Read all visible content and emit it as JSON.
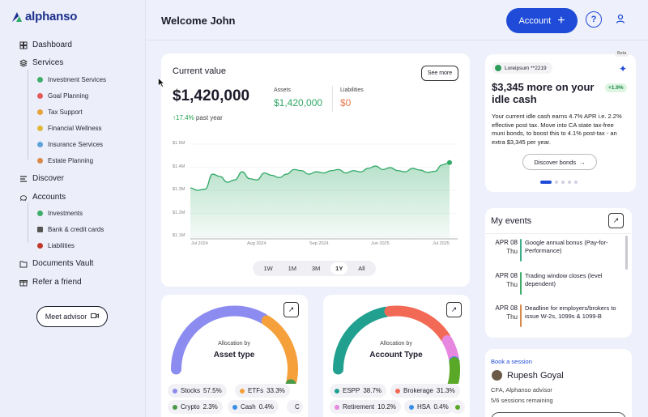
{
  "brand": {
    "name": "alphanso",
    "color": "#1b2f8c"
  },
  "sidebar": {
    "nav": [
      {
        "label": "Dashboard",
        "icon": "grid-icon"
      },
      {
        "label": "Services",
        "icon": "layers-icon"
      },
      {
        "label": "Discover",
        "icon": "menu-icon"
      },
      {
        "label": "Accounts",
        "icon": "piggy-bank-icon"
      },
      {
        "label": "Documents Vault",
        "icon": "folder-icon"
      },
      {
        "label": "Refer a friend",
        "icon": "gift-icon"
      }
    ],
    "services": [
      {
        "label": "Investment Services",
        "color": "#3fae6a"
      },
      {
        "label": "Goal Planning",
        "color": "#e25a5a"
      },
      {
        "label": "Tax Support",
        "color": "#e8a33d"
      },
      {
        "label": "Financial Wellness",
        "color": "#e0b83a"
      },
      {
        "label": "Insurance Services",
        "color": "#5ea3d9"
      },
      {
        "label": "Estate Planning",
        "color": "#d98a4a"
      }
    ],
    "accounts": [
      {
        "label": "Investments",
        "color": "#3fae6a"
      },
      {
        "label": "Bank & credit cards",
        "color": "#555555"
      },
      {
        "label": "Liabilities",
        "color": "#c0392b"
      }
    ],
    "meet_advisor": "Meet advisor"
  },
  "header": {
    "welcome": "Welcome John",
    "account_button": "Account",
    "help_icon": "?"
  },
  "current_value": {
    "title": "Current value",
    "see_more": "See more",
    "amount": "$1,420,000",
    "change_pct": "17.4%",
    "change_label": "past year",
    "assets_label": "Assets",
    "assets_value": "$1,420,000",
    "liabilities_label": "Liabilities",
    "liabilities_value": "$0",
    "ranges": [
      "1W",
      "1M",
      "3M",
      "1Y",
      "All"
    ],
    "active_range": "1Y"
  },
  "chart_data": {
    "type": "area",
    "title": "",
    "xlabel": "",
    "ylabel": "",
    "x_ticks": [
      "Jul 2024",
      "Aug 2024",
      "Sep 2024",
      "Jun 2025",
      "Jul 2025"
    ],
    "y_ticks": [
      "$1.5M",
      "$1.4M",
      "$1.3M",
      "$1.2M",
      "$1.1M"
    ],
    "ylim": [
      1100000,
      1500000
    ],
    "series": [
      {
        "values": [
          1310000,
          1300000,
          1305000,
          1370000,
          1360000,
          1335000,
          1345000,
          1380000,
          1350000,
          1345000,
          1375000,
          1365000,
          1355000,
          1370000,
          1390000,
          1385000,
          1370000,
          1380000,
          1375000,
          1385000,
          1390000,
          1375000,
          1385000,
          1380000,
          1395000,
          1405000,
          1390000,
          1398000,
          1385000,
          1380000,
          1395000,
          1388000,
          1378000,
          1382000,
          1410000,
          1420000
        ]
      }
    ],
    "color": "#2fa866",
    "grid": true
  },
  "promo": {
    "account": "Loreipsum **2219",
    "beta": "Beta",
    "title": "$3,345 more on your idle cash",
    "badge": "+1.9%",
    "body": "Your current idle cash earns 4.7% APR i.e. 2.2% effective post tax. Move into CA state tax-free muni bonds, to boost this to 4.1% post-tax - an extra $3,345 per year.",
    "button": "Discover bonds",
    "arrow": "→"
  },
  "events": {
    "title": "My events",
    "items": [
      {
        "date": "APR 08",
        "day": "Thu",
        "text": "Google annual bonus (Pay-for-Performance)",
        "color": "#3fae8a"
      },
      {
        "date": "APR 08",
        "day": "Thu",
        "text": "Trading window closes (level dependent)",
        "color": "#3fae6a"
      },
      {
        "date": "APR 08",
        "day": "Thu",
        "text": "Deadline for employers/brokers to issue W-2s, 1099s & 1099-B",
        "color": "#d98a4a"
      }
    ]
  },
  "session": {
    "label": "Book a session",
    "name": "Rupesh Goyal",
    "role": "CFA, Alphanso advisor",
    "remaining": "5/6 sessions remaining"
  },
  "allocation_asset": {
    "by": "Allocation by",
    "name": "Asset type",
    "segments": [
      {
        "label": "Stocks",
        "pct": "57.5%",
        "value": 57.5,
        "color": "#8c8cf0"
      },
      {
        "label": "ETFs",
        "pct": "33.3%",
        "value": 33.3,
        "color": "#f5a03a"
      },
      {
        "label": "Crypto",
        "pct": "2.3%",
        "value": 2.3,
        "color": "#4a9a48"
      },
      {
        "label": "Cash",
        "pct": "0.4%",
        "value": 0.4,
        "color": "#3a8ee6"
      },
      {
        "label": "C",
        "pct": "",
        "value": 6.5,
        "color": "#ef5a8a"
      }
    ]
  },
  "allocation_account": {
    "by": "Allocation by",
    "name": "Account Type",
    "segments": [
      {
        "label": "ESPP",
        "pct": "38.7%",
        "value": 38.7,
        "color": "#22a08f"
      },
      {
        "label": "Brokerage",
        "pct": "31.3%",
        "value": 31.3,
        "color": "#f26a55"
      },
      {
        "label": "Retirement",
        "pct": "10.2%",
        "value": 10.2,
        "color": "#e887e0"
      },
      {
        "label": "HSA",
        "pct": "0.4%",
        "value": 0.4,
        "color": "#3a8ee6"
      },
      {
        "label": "",
        "pct": "",
        "value": 19.4,
        "color": "#5aa828"
      }
    ]
  }
}
